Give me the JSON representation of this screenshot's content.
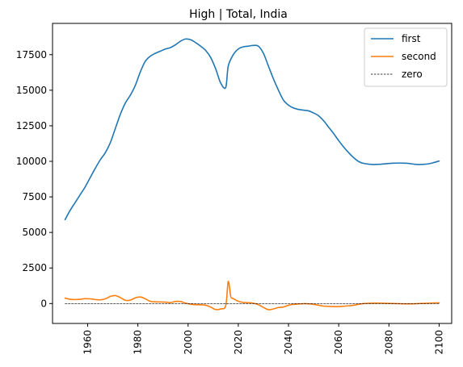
{
  "chart_data": {
    "type": "line",
    "title": "High | Total, India",
    "xlabel": "",
    "ylabel": "",
    "xlim": [
      1946,
      2105
    ],
    "ylim": [
      -1400,
      19700
    ],
    "xticks": [
      1960,
      1980,
      2000,
      2020,
      2040,
      2060,
      2080,
      2100
    ],
    "yticks": [
      0,
      2500,
      5000,
      7500,
      10000,
      12500,
      15000,
      17500
    ],
    "legend_position": "top-right",
    "grid": false,
    "series": [
      {
        "name": "first",
        "color": "#1f77b4",
        "x": [
          1951,
          1953,
          1955,
          1957,
          1959,
          1961,
          1963,
          1965,
          1967,
          1969,
          1971,
          1973,
          1975,
          1977,
          1979,
          1981,
          1983,
          1985,
          1987,
          1989,
          1991,
          1993,
          1995,
          1997,
          1999,
          2001,
          2003,
          2005,
          2007,
          2009,
          2011,
          2013,
          2015,
          2016,
          2018,
          2020,
          2022,
          2024,
          2026,
          2028,
          2030,
          2032,
          2034,
          2036,
          2038,
          2040,
          2042,
          2044,
          2046,
          2048,
          2050,
          2052,
          2054,
          2056,
          2058,
          2060,
          2062,
          2064,
          2066,
          2068,
          2070,
          2072,
          2074,
          2076,
          2078,
          2080,
          2082,
          2084,
          2086,
          2088,
          2090,
          2092,
          2094,
          2096,
          2098,
          2100
        ],
        "y": [
          5900,
          6550,
          7100,
          7650,
          8200,
          8850,
          9500,
          10100,
          10600,
          11300,
          12300,
          13300,
          14100,
          14650,
          15350,
          16300,
          17050,
          17400,
          17600,
          17750,
          17900,
          18000,
          18200,
          18450,
          18600,
          18550,
          18350,
          18100,
          17800,
          17300,
          16500,
          15500,
          15200,
          16700,
          17500,
          17900,
          18050,
          18100,
          18150,
          18100,
          17600,
          16700,
          15800,
          15000,
          14300,
          13950,
          13750,
          13650,
          13600,
          13550,
          13400,
          13200,
          12850,
          12400,
          11950,
          11450,
          11000,
          10600,
          10250,
          9980,
          9850,
          9800,
          9780,
          9790,
          9820,
          9850,
          9870,
          9880,
          9870,
          9850,
          9800,
          9780,
          9790,
          9830,
          9920,
          10020
        ]
      },
      {
        "name": "second",
        "color": "#ff7f0e",
        "x": [
          1951,
          1953,
          1955,
          1957,
          1959,
          1961,
          1963,
          1965,
          1967,
          1969,
          1971,
          1973,
          1975,
          1977,
          1979,
          1981,
          1983,
          1985,
          1987,
          1989,
          1991,
          1993,
          1995,
          1997,
          1999,
          2001,
          2003,
          2005,
          2007,
          2009,
          2011,
          2013,
          2015,
          2016,
          2017,
          2018,
          2020,
          2022,
          2024,
          2026,
          2028,
          2030,
          2032,
          2034,
          2036,
          2038,
          2040,
          2042,
          2044,
          2046,
          2048,
          2050,
          2052,
          2054,
          2056,
          2058,
          2060,
          2062,
          2064,
          2066,
          2068,
          2070,
          2072,
          2074,
          2076,
          2078,
          2080,
          2082,
          2084,
          2086,
          2088,
          2090,
          2092,
          2094,
          2096,
          2098,
          2100
        ],
        "y": [
          380,
          300,
          280,
          300,
          340,
          330,
          280,
          260,
          330,
          500,
          560,
          420,
          230,
          240,
          400,
          460,
          330,
          150,
          120,
          110,
          100,
          70,
          150,
          140,
          30,
          -50,
          -80,
          -90,
          -120,
          -250,
          -420,
          -380,
          -150,
          1550,
          500,
          350,
          160,
          80,
          60,
          20,
          -80,
          -270,
          -430,
          -380,
          -280,
          -240,
          -120,
          -60,
          -30,
          -10,
          -20,
          -60,
          -120,
          -180,
          -200,
          -210,
          -210,
          -190,
          -160,
          -120,
          -50,
          0,
          20,
          30,
          30,
          20,
          10,
          0,
          -10,
          -20,
          -20,
          -20,
          0,
          10,
          30,
          40,
          50
        ]
      },
      {
        "name": "zero",
        "color": "#000000",
        "style": "dashed",
        "x": [
          1951,
          2100
        ],
        "y": [
          0,
          0
        ]
      }
    ]
  }
}
